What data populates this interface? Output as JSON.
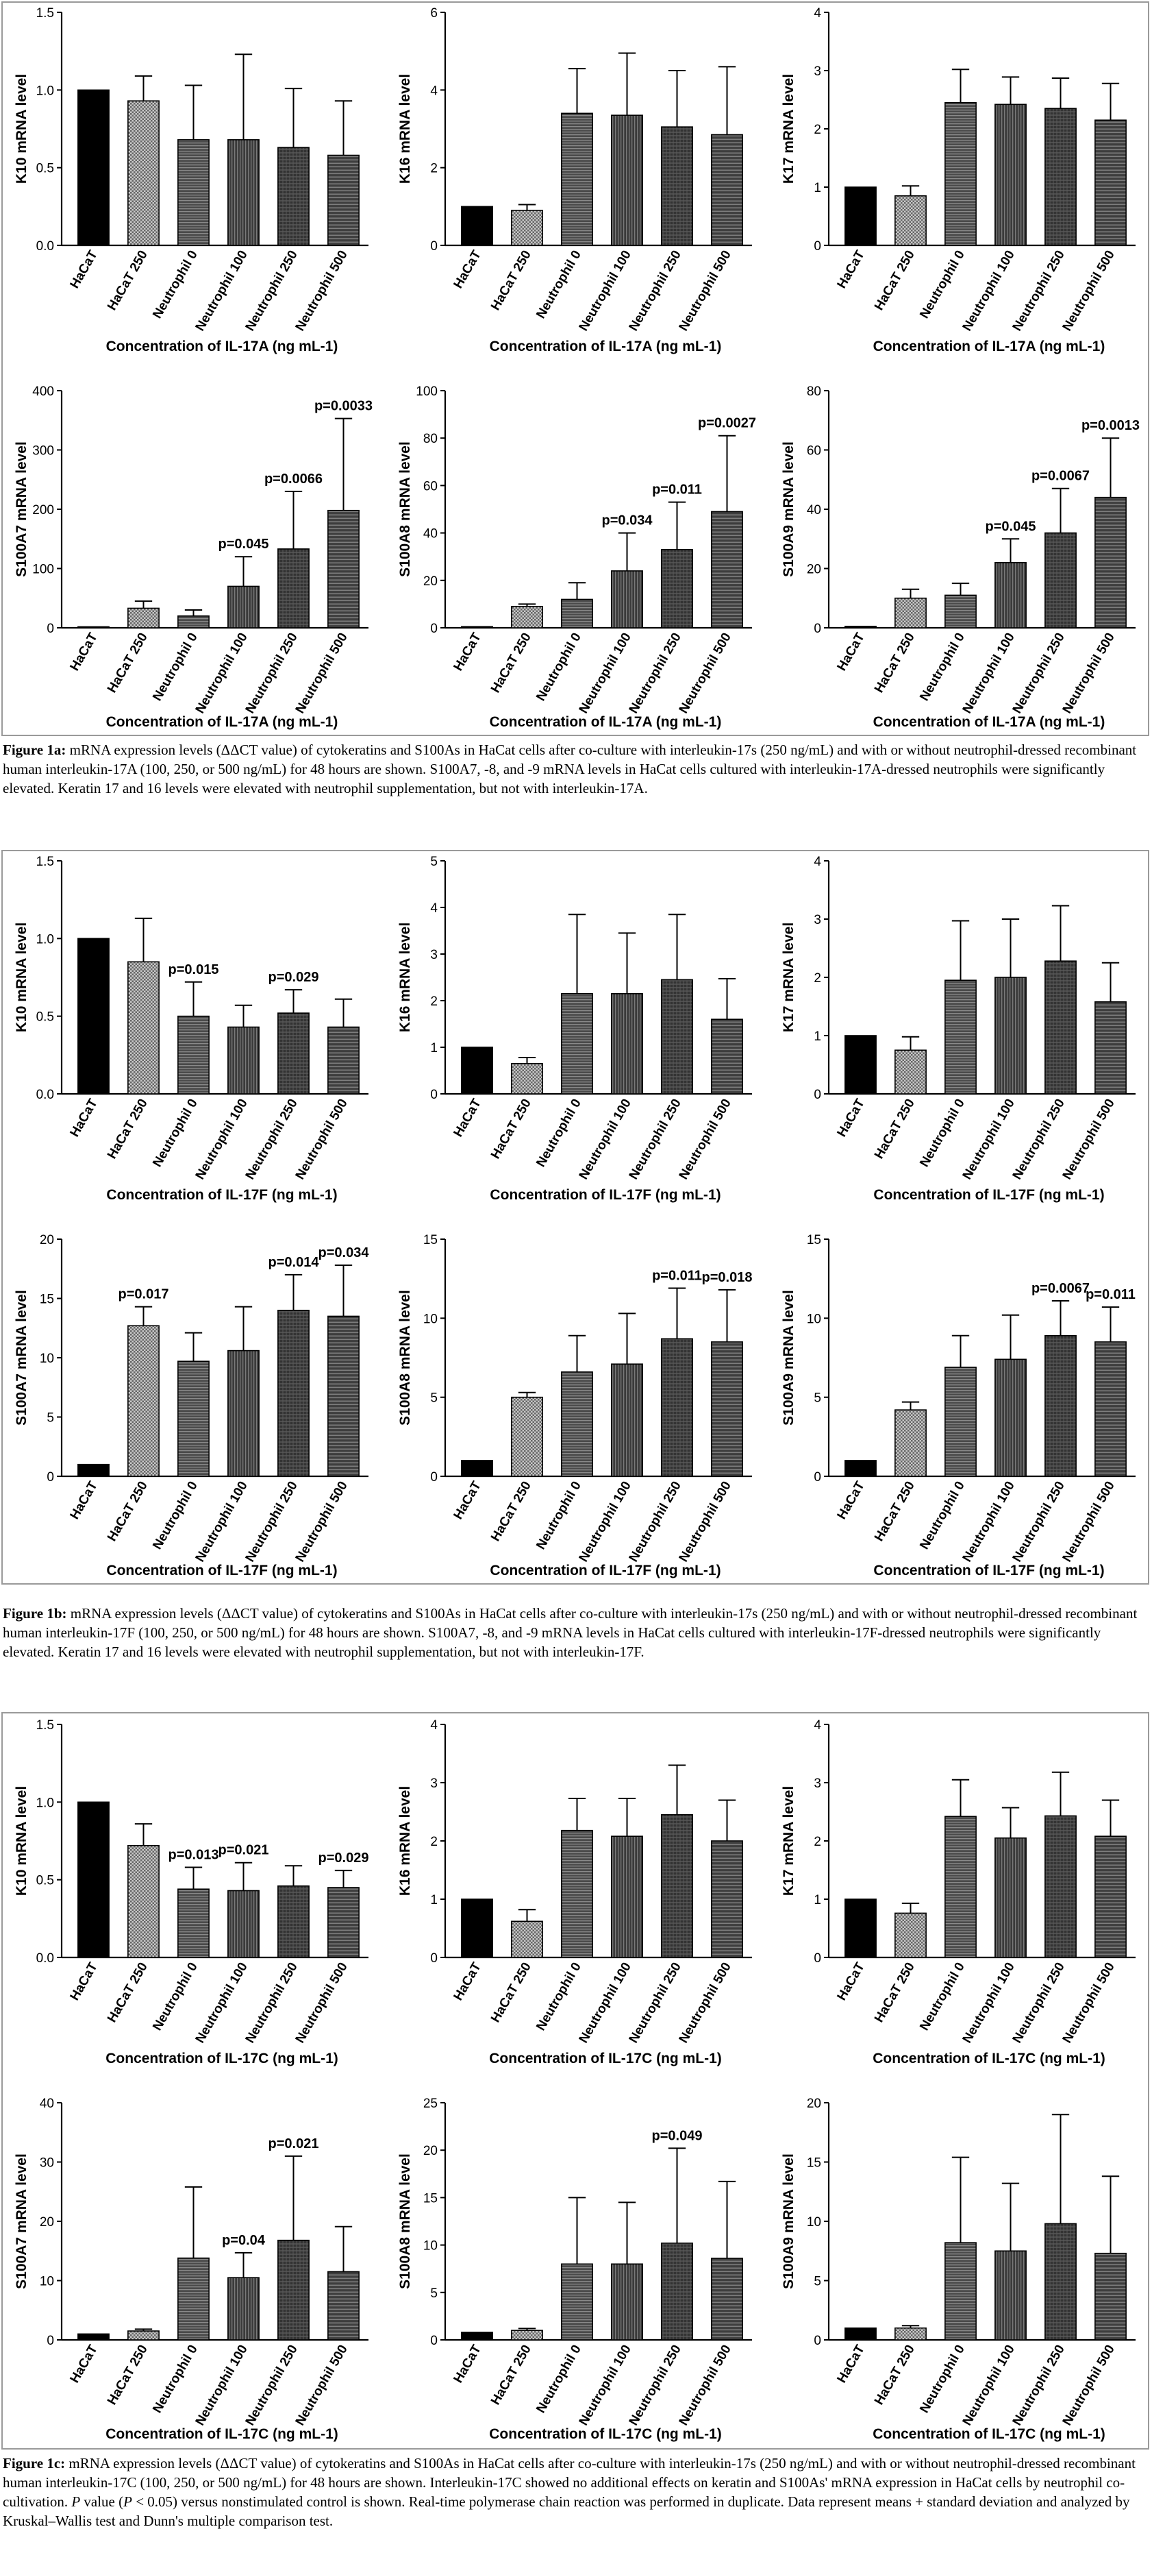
{
  "palette": {
    "HaCaT": "#000000",
    "HaCaT 250": "#a3a3a3",
    "Neutrophil 0": "#545454",
    "Neutrophil 100": "#464646",
    "Neutrophil 250": "#3c3c3c",
    "Neutrophil 500": "#4c4c4c"
  },
  "categories": [
    "HaCaT",
    "HaCaT 250",
    "Neutrophil 0",
    "Neutrophil 100",
    "Neutrophil 250",
    "Neutrophil 500"
  ],
  "captions": {
    "fig1a": {
      "label": "Figure 1a:",
      "text": "mRNA expression levels (ΔΔCT value) of cytokeratins and S100As in HaCat cells after co-culture with interleukin-17s (250 ng/mL) and with or without neutrophil-dressed recombinant human interleukin-17A (100, 250, or 500 ng/mL) for 48 hours are shown. S100A7, -8, and -9 mRNA levels in HaCat cells cultured with interleukin-17A-dressed neutrophils were significantly elevated. Keratin 17 and 16 levels were elevated with neutrophil supplementation, but not with interleukin-17A."
    },
    "fig1b": {
      "label": "Figure 1b:",
      "text": "mRNA expression levels (ΔΔCT value) of cytokeratins and S100As in HaCat cells after co-culture with interleukin-17s (250 ng/mL) and with or without neutrophil-dressed recombinant human interleukin-17F (100, 250, or 500 ng/mL) for 48 hours are shown. S100A7, -8, and -9 mRNA levels in HaCat cells cultured with interleukin-17F-dressed neutrophils were significantly elevated. Keratin 17 and 16 levels were elevated with neutrophil supplementation, but not with interleukin-17F."
    },
    "fig1c": {
      "label": "Figure 1c:",
      "text_before_p": "mRNA expression levels (ΔΔCT value) of cytokeratins and S100As in HaCat cells after co-culture with interleukin-17s (250 ng/mL) and with or without neutrophil-dressed recombinant human interleukin-17C (100, 250, or 500 ng/mL) for 48 hours are shown. Interleukin-17C showed no additional effects on keratin and S100As' mRNA expression in HaCat cells by neutrophil co-cultivation.",
      "p_letter": "P",
      "p_mid": "value (",
      "p_letter2": "P",
      "text_after_p": "< 0.05) versus nonstimulated control is shown. Real-time polymerase chain reaction was performed in duplicate. Data represent means + standard deviation and analyzed by Kruskal–Wallis test and Dunn's multiple comparison test."
    }
  },
  "chart_data": [
    {
      "id": "a1",
      "type": "bar",
      "ylabel": "K10 mRNA level",
      "xlabel": "Concentration of IL-17A (ng mL-1)",
      "ylim": [
        0,
        1.5
      ],
      "yticks": [
        0,
        0.5,
        1.0,
        1.5
      ],
      "ytick_labels": [
        "0.0",
        "0.5",
        "1.0",
        "1.5"
      ],
      "values": [
        1.0,
        0.93,
        0.68,
        0.68,
        0.63,
        0.58
      ],
      "errors": [
        0,
        0.16,
        0.35,
        0.55,
        0.38,
        0.35
      ],
      "pvalues": [
        null,
        null,
        null,
        null,
        null,
        null
      ]
    },
    {
      "id": "a2",
      "type": "bar",
      "ylabel": "K16 mRNA level",
      "xlabel": "Concentration of IL-17A (ng mL-1)",
      "ylim": [
        0,
        6
      ],
      "yticks": [
        0,
        2,
        4,
        6
      ],
      "ytick_labels": [
        "0",
        "2",
        "4",
        "6"
      ],
      "values": [
        1.0,
        0.9,
        3.4,
        3.35,
        3.05,
        2.85
      ],
      "errors": [
        0,
        0.15,
        1.15,
        1.6,
        1.45,
        1.75
      ],
      "pvalues": [
        null,
        null,
        null,
        null,
        null,
        null
      ]
    },
    {
      "id": "a3",
      "type": "bar",
      "ylabel": "K17 mRNA level",
      "xlabel": "Concentration of IL-17A (ng mL-1)",
      "ylim": [
        0,
        4
      ],
      "yticks": [
        0,
        1,
        2,
        3,
        4
      ],
      "ytick_labels": [
        "0",
        "1",
        "2",
        "3",
        "4"
      ],
      "values": [
        1.0,
        0.85,
        2.45,
        2.42,
        2.35,
        2.15
      ],
      "errors": [
        0,
        0.17,
        0.57,
        0.47,
        0.52,
        0.63
      ],
      "pvalues": [
        null,
        null,
        null,
        null,
        null,
        null
      ]
    },
    {
      "id": "a4",
      "type": "bar",
      "ylabel": "S100A7 mRNA level",
      "xlabel": "Concentration of IL-17A (ng mL-1)",
      "ylim": [
        0,
        400
      ],
      "yticks": [
        0,
        100,
        200,
        300,
        400
      ],
      "ytick_labels": [
        "0",
        "100",
        "200",
        "300",
        "400"
      ],
      "values": [
        1,
        33,
        20,
        70,
        133,
        198
      ],
      "errors": [
        0,
        12,
        10,
        50,
        97,
        155
      ],
      "pvalues": [
        null,
        null,
        null,
        "p=0.045",
        "p=0.0066",
        "p=0.0033"
      ]
    },
    {
      "id": "a5",
      "type": "bar",
      "ylabel": "S100A8 mRNA level",
      "xlabel": "Concentration of IL-17A (ng mL-1)",
      "ylim": [
        0,
        100
      ],
      "yticks": [
        0,
        20,
        40,
        60,
        80,
        100
      ],
      "ytick_labels": [
        "0",
        "20",
        "40",
        "60",
        "80",
        "100"
      ],
      "values": [
        0.5,
        9,
        12,
        24,
        33,
        49
      ],
      "errors": [
        0,
        1,
        7,
        16,
        20,
        32
      ],
      "pvalues": [
        null,
        null,
        null,
        "p=0.034",
        "p=0.011",
        "p=0.0027"
      ]
    },
    {
      "id": "a6",
      "type": "bar",
      "ylabel": "S100A9 mRNA level",
      "xlabel": "Concentration of IL-17A (ng mL-1)",
      "ylim": [
        0,
        80
      ],
      "yticks": [
        0,
        20,
        40,
        60,
        80
      ],
      "ytick_labels": [
        "0",
        "20",
        "40",
        "60",
        "80"
      ],
      "values": [
        0.5,
        10,
        11,
        22,
        32,
        44
      ],
      "errors": [
        0,
        3,
        4,
        8,
        15,
        20
      ],
      "pvalues": [
        null,
        null,
        null,
        "p=0.045",
        "p=0.0067",
        "p=0.0013"
      ]
    },
    {
      "id": "b1",
      "type": "bar",
      "ylabel": "K10 mRNA level",
      "xlabel": "Concentration of IL-17F (ng mL-1)",
      "ylim": [
        0,
        1.5
      ],
      "yticks": [
        0,
        0.5,
        1.0,
        1.5
      ],
      "ytick_labels": [
        "0.0",
        "0.5",
        "1.0",
        "1.5"
      ],
      "values": [
        1.0,
        0.85,
        0.5,
        0.43,
        0.52,
        0.43
      ],
      "errors": [
        0,
        0.28,
        0.22,
        0.14,
        0.15,
        0.18
      ],
      "pvalues": [
        null,
        null,
        "p=0.015",
        null,
        "p=0.029",
        null
      ]
    },
    {
      "id": "b2",
      "type": "bar",
      "ylabel": "K16 mRNA level",
      "xlabel": "Concentration of IL-17F (ng mL-1)",
      "ylim": [
        0,
        5
      ],
      "yticks": [
        0,
        1,
        2,
        3,
        4,
        5
      ],
      "ytick_labels": [
        "0",
        "1",
        "2",
        "3",
        "4",
        "5"
      ],
      "values": [
        1.0,
        0.65,
        2.15,
        2.15,
        2.45,
        1.6
      ],
      "errors": [
        0,
        0.13,
        1.7,
        1.3,
        1.4,
        0.87
      ],
      "pvalues": [
        null,
        null,
        null,
        null,
        null,
        null
      ]
    },
    {
      "id": "b3",
      "type": "bar",
      "ylabel": "K17 mRNA level",
      "xlabel": "Concentration of IL-17F (ng mL-1)",
      "ylim": [
        0,
        4
      ],
      "yticks": [
        0,
        1,
        2,
        3,
        4
      ],
      "ytick_labels": [
        "0",
        "1",
        "2",
        "3",
        "4"
      ],
      "values": [
        1.0,
        0.75,
        1.95,
        2.0,
        2.28,
        1.58
      ],
      "errors": [
        0,
        0.23,
        1.02,
        1.0,
        0.95,
        0.67
      ],
      "pvalues": [
        null,
        null,
        null,
        null,
        null,
        null
      ]
    },
    {
      "id": "b4",
      "type": "bar",
      "ylabel": "S100A7 mRNA level",
      "xlabel": "Concentration of IL-17F (ng mL-1)",
      "ylim": [
        0,
        20
      ],
      "yticks": [
        0,
        5,
        10,
        15,
        20
      ],
      "ytick_labels": [
        "0",
        "5",
        "10",
        "15",
        "20"
      ],
      "values": [
        1,
        12.7,
        9.7,
        10.6,
        14.0,
        13.5
      ],
      "errors": [
        0,
        1.6,
        2.4,
        3.7,
        3.0,
        4.3
      ],
      "pvalues": [
        null,
        "p=0.017",
        null,
        null,
        "p=0.014",
        "p=0.034"
      ]
    },
    {
      "id": "b5",
      "type": "bar",
      "ylabel": "S100A8 mRNA level",
      "xlabel": "Concentration of IL-17F (ng mL-1)",
      "ylim": [
        0,
        15
      ],
      "yticks": [
        0,
        5,
        10,
        15
      ],
      "ytick_labels": [
        "0",
        "5",
        "10",
        "15"
      ],
      "values": [
        1,
        5,
        6.6,
        7.1,
        8.7,
        8.5
      ],
      "errors": [
        0,
        0.3,
        2.3,
        3.2,
        3.2,
        3.3
      ],
      "pvalues": [
        null,
        null,
        null,
        null,
        "p=0.011",
        "p=0.018"
      ]
    },
    {
      "id": "b6",
      "type": "bar",
      "ylabel": "S100A9 mRNA level",
      "xlabel": "Concentration of IL-17F (ng mL-1)",
      "ylim": [
        0,
        15
      ],
      "yticks": [
        0,
        5,
        10,
        15
      ],
      "ytick_labels": [
        "0",
        "5",
        "10",
        "15"
      ],
      "values": [
        1,
        4.2,
        6.9,
        7.4,
        8.9,
        8.5
      ],
      "errors": [
        0,
        0.5,
        2.0,
        2.8,
        2.2,
        2.2
      ],
      "pvalues": [
        null,
        null,
        null,
        null,
        "p=0.0067",
        "p=0.011"
      ]
    },
    {
      "id": "c1",
      "type": "bar",
      "ylabel": "K10 mRNA level",
      "xlabel": "Concentration of IL-17C (ng mL-1)",
      "ylim": [
        0,
        1.5
      ],
      "yticks": [
        0,
        0.5,
        1.0,
        1.5
      ],
      "ytick_labels": [
        "0.0",
        "0.5",
        "1.0",
        "1.5"
      ],
      "values": [
        1.0,
        0.72,
        0.44,
        0.43,
        0.46,
        0.45
      ],
      "errors": [
        0,
        0.14,
        0.14,
        0.18,
        0.13,
        0.11
      ],
      "pvalues": [
        null,
        null,
        "p=0.013",
        "p=0.021",
        null,
        "p=0.029"
      ]
    },
    {
      "id": "c2",
      "type": "bar",
      "ylabel": "K16 mRNA level",
      "xlabel": "Concentration of IL-17C (ng mL-1)",
      "ylim": [
        0,
        4
      ],
      "yticks": [
        0,
        1,
        2,
        3,
        4
      ],
      "ytick_labels": [
        "0",
        "1",
        "2",
        "3",
        "4"
      ],
      "values": [
        1.0,
        0.62,
        2.18,
        2.08,
        2.45,
        2.0
      ],
      "errors": [
        0,
        0.2,
        0.55,
        0.65,
        0.85,
        0.7
      ],
      "pvalues": [
        null,
        null,
        null,
        null,
        null,
        null
      ]
    },
    {
      "id": "c3",
      "type": "bar",
      "ylabel": "K17 mRNA level",
      "xlabel": "Concentration of IL-17C (ng mL-1)",
      "ylim": [
        0,
        4
      ],
      "yticks": [
        0,
        1,
        2,
        3,
        4
      ],
      "ytick_labels": [
        "0",
        "1",
        "2",
        "3",
        "4"
      ],
      "values": [
        1.0,
        0.76,
        2.42,
        2.05,
        2.43,
        2.08
      ],
      "errors": [
        0,
        0.17,
        0.63,
        0.52,
        0.75,
        0.62
      ],
      "pvalues": [
        null,
        null,
        null,
        null,
        null,
        null
      ]
    },
    {
      "id": "c4",
      "type": "bar",
      "ylabel": "S100A7 mRNA level",
      "xlabel": "Concentration of IL-17C (ng mL-1)",
      "ylim": [
        0,
        40
      ],
      "yticks": [
        0,
        10,
        20,
        30,
        40
      ],
      "ytick_labels": [
        "0",
        "10",
        "20",
        "30",
        "40"
      ],
      "values": [
        1,
        1.5,
        13.8,
        10.5,
        16.8,
        11.5
      ],
      "errors": [
        0,
        0.3,
        12,
        4.2,
        14.2,
        7.6
      ],
      "pvalues": [
        null,
        null,
        null,
        "p=0.04",
        "p=0.021",
        null
      ]
    },
    {
      "id": "c5",
      "type": "bar",
      "ylabel": "S100A8 mRNA level",
      "xlabel": "Concentration of IL-17C (ng mL-1)",
      "ylim": [
        0,
        25
      ],
      "yticks": [
        0,
        5,
        10,
        15,
        20,
        25
      ],
      "ytick_labels": [
        "0",
        "5",
        "10",
        "15",
        "20",
        "25"
      ],
      "values": [
        0.8,
        1.0,
        8.0,
        8.0,
        10.2,
        8.6
      ],
      "errors": [
        0,
        0.2,
        7.0,
        6.5,
        10.0,
        8.1
      ],
      "pvalues": [
        null,
        null,
        null,
        null,
        "p=0.049",
        null
      ]
    },
    {
      "id": "c6",
      "type": "bar",
      "ylabel": "S100A9 mRNA level",
      "xlabel": "Concentration of IL-17C (ng mL-1)",
      "ylim": [
        0,
        20
      ],
      "yticks": [
        0,
        5,
        10,
        15,
        20
      ],
      "ytick_labels": [
        "0",
        "5",
        "10",
        "15",
        "20"
      ],
      "values": [
        1.0,
        1.0,
        8.2,
        7.5,
        9.8,
        7.3
      ],
      "errors": [
        0,
        0.2,
        7.2,
        5.7,
        9.2,
        6.5
      ],
      "pvalues": [
        null,
        null,
        null,
        null,
        null,
        null
      ]
    }
  ]
}
